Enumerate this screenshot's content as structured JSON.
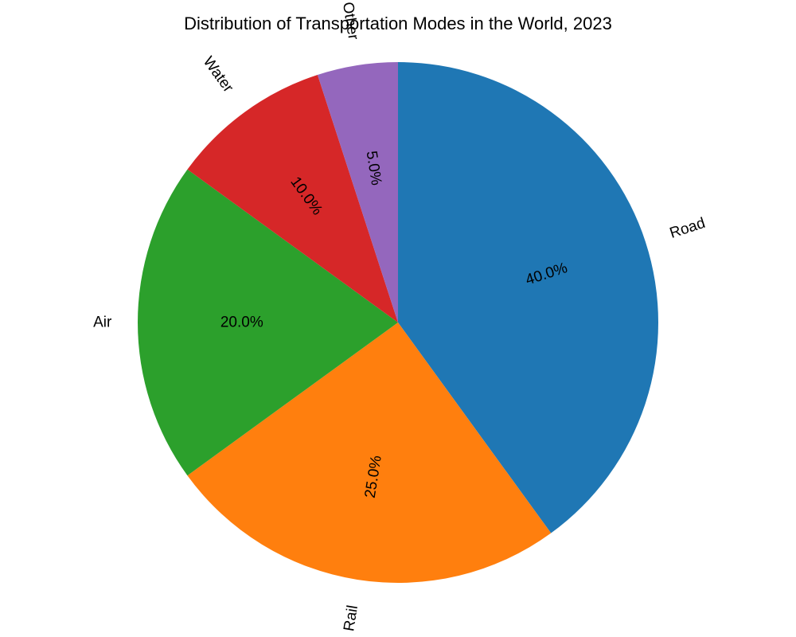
{
  "chart_data": {
    "type": "pie",
    "title": "Distribution of Transportation Modes in the World, 2023",
    "start_angle_deg": 90,
    "direction": "clockwise",
    "slices": [
      {
        "label": "Road",
        "value": 40.0,
        "pct_label": "40.0%",
        "color": "#1f77b4"
      },
      {
        "label": "Rail",
        "value": 25.0,
        "pct_label": "25.0%",
        "color": "#ff7f0e"
      },
      {
        "label": "Air",
        "value": 20.0,
        "pct_label": "20.0%",
        "color": "#2ca02c"
      },
      {
        "label": "Water",
        "value": 10.0,
        "pct_label": "10.0%",
        "color": "#d62728"
      },
      {
        "label": "Other",
        "value": 5.0,
        "pct_label": "5.0%",
        "color": "#9467bd"
      }
    ]
  }
}
